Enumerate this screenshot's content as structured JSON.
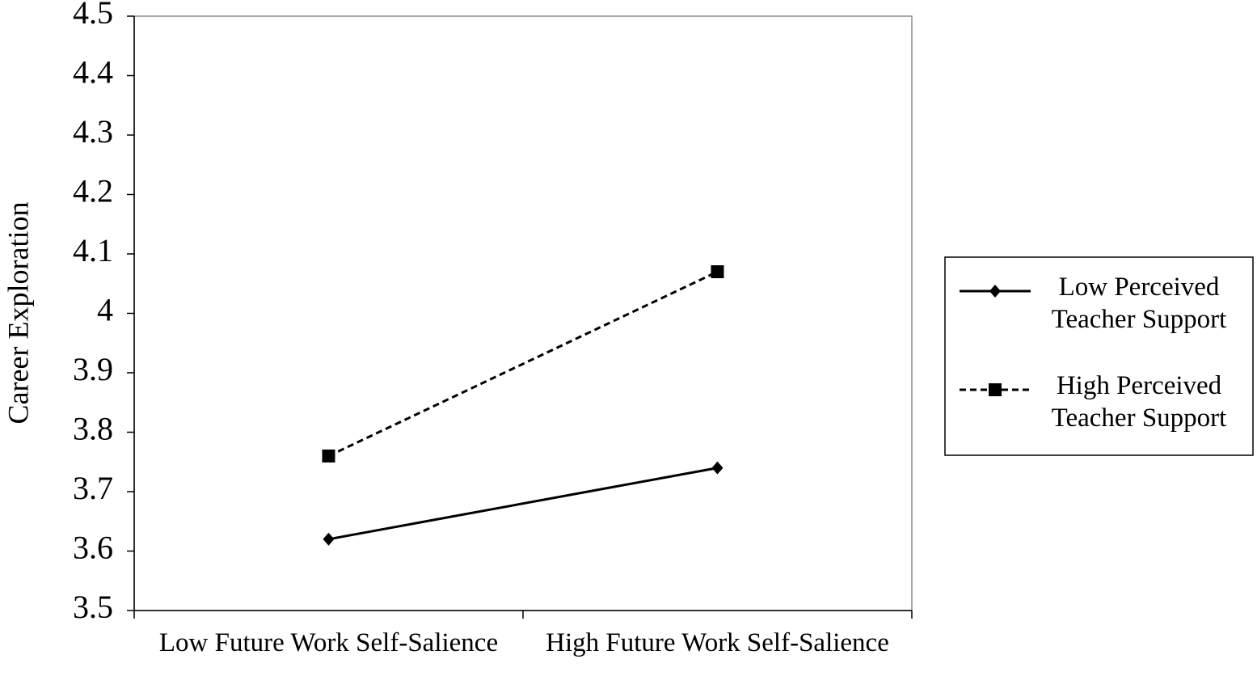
{
  "chart_data": {
    "type": "line",
    "categories": [
      "Low Future Work Self-Salience",
      "High Future Work Self-Salience"
    ],
    "series": [
      {
        "name": "Low Perceived Teacher Support",
        "color": "#000000",
        "line_style": "solid",
        "marker": "diamond",
        "values": [
          3.62,
          3.74
        ]
      },
      {
        "name": "High Perceived Teacher Support",
        "color": "#000000",
        "line_style": "dashed",
        "marker": "square",
        "values": [
          3.76,
          4.07
        ]
      }
    ],
    "y_label": "Career Exploration",
    "ylim": [
      3.5,
      4.5
    ],
    "yticks": [
      3.5,
      3.6,
      3.7,
      3.8,
      3.9,
      4,
      4.1,
      4.2,
      4.3,
      4.4,
      4.5
    ],
    "grid": false,
    "legend": "right"
  }
}
